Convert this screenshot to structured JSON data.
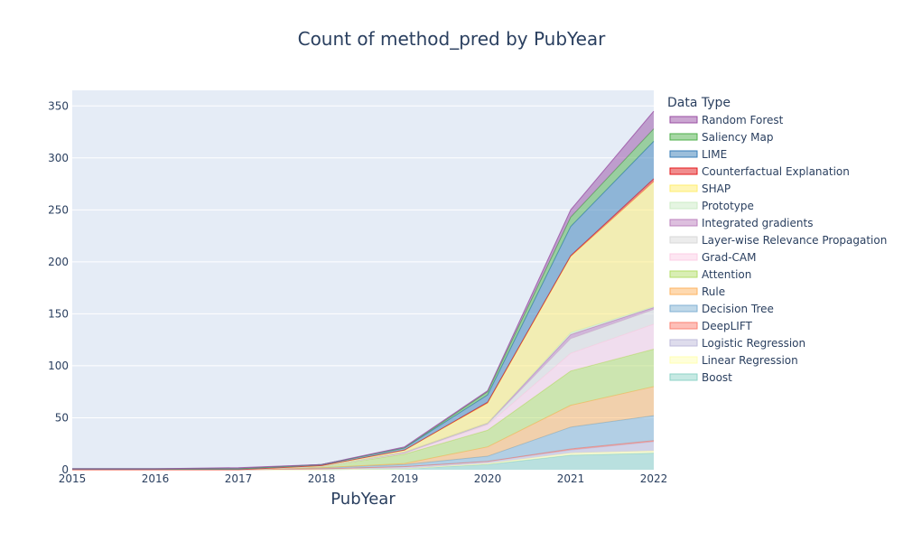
{
  "chart_data": {
    "type": "area",
    "title": "Count of method_pred by PubYear",
    "xlabel": "PubYear",
    "ylabel": "",
    "x": [
      2015,
      2016,
      2017,
      2018,
      2019,
      2020,
      2021,
      2022
    ],
    "xlim": [
      2015,
      2022
    ],
    "ylim": [
      0,
      365
    ],
    "yticks": [
      0,
      50,
      100,
      150,
      200,
      250,
      300,
      350
    ],
    "grid": true,
    "legend_title": "Data Type",
    "legend_position": "right",
    "series": [
      {
        "name": "Boost",
        "color": "#8dd3c7",
        "values": [
          0,
          0,
          0,
          0,
          1,
          5,
          14,
          16
        ]
      },
      {
        "name": "Linear Regression",
        "color": "#ffffb3",
        "values": [
          0,
          0,
          0,
          0,
          0,
          1,
          2,
          2
        ]
      },
      {
        "name": "Logistic Regression",
        "color": "#bebada",
        "values": [
          0,
          0,
          0,
          1,
          2,
          2,
          3,
          9
        ]
      },
      {
        "name": "DeepLIFT",
        "color": "#fb8072",
        "values": [
          0,
          0,
          0,
          0,
          0,
          0,
          1,
          1
        ]
      },
      {
        "name": "Decision Tree",
        "color": "#80b1d3",
        "values": [
          0,
          0,
          0,
          1,
          2,
          5,
          21,
          24
        ]
      },
      {
        "name": "Rule",
        "color": "#fdb462",
        "values": [
          0,
          0,
          0,
          0,
          1,
          9,
          21,
          28
        ]
      },
      {
        "name": "Attention",
        "color": "#b3de69",
        "values": [
          0,
          0,
          0,
          1,
          9,
          16,
          33,
          36
        ]
      },
      {
        "name": "Grad-CAM",
        "color": "#fccde5",
        "values": [
          0,
          0,
          0,
          0,
          1,
          5,
          17,
          24
        ]
      },
      {
        "name": "Layer-wise Relevance Propagation",
        "color": "#d9d9d9",
        "values": [
          0,
          0,
          0,
          0,
          0,
          1,
          14,
          14
        ]
      },
      {
        "name": "Integrated gradients",
        "color": "#bc80bd",
        "values": [
          0,
          0,
          0,
          0,
          1,
          1,
          4,
          2
        ]
      },
      {
        "name": "Prototype",
        "color": "#ccebc5",
        "values": [
          0,
          0,
          0,
          0,
          0,
          0,
          2,
          1
        ]
      },
      {
        "name": "SHAP",
        "color": "#ffed6f",
        "values": [
          0,
          0,
          0,
          1,
          2,
          19,
          73,
          120
        ]
      },
      {
        "name": "Counterfactual Explanation",
        "color": "#e41a1c",
        "values": [
          0,
          0,
          0,
          0,
          0,
          1,
          1,
          3
        ]
      },
      {
        "name": "LIME",
        "color": "#377eb8",
        "values": [
          1,
          1,
          1,
          1,
          2,
          7,
          28,
          36
        ]
      },
      {
        "name": "Saliency Map",
        "color": "#4daf4a",
        "values": [
          0,
          0,
          0,
          0,
          0,
          3,
          9,
          12
        ]
      },
      {
        "name": "Random Forest",
        "color": "#984ea3",
        "values": [
          0,
          0,
          1,
          0,
          1,
          1,
          7,
          17
        ]
      }
    ]
  }
}
